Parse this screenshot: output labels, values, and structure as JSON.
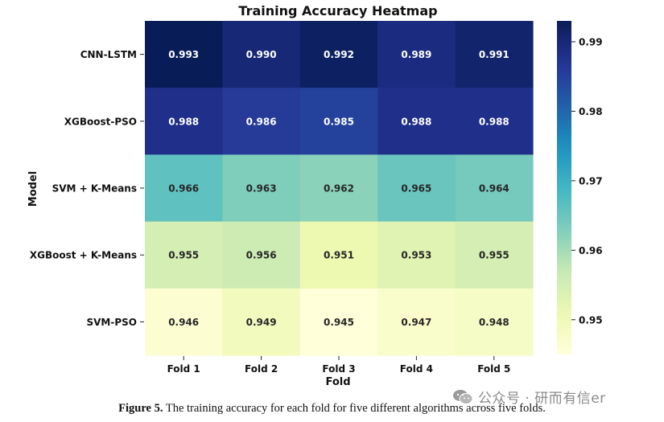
{
  "chart_data": {
    "type": "heatmap",
    "title": "Training Accuracy Heatmap",
    "xlabel": "Fold",
    "ylabel": "Model",
    "columns": [
      "Fold 1",
      "Fold 2",
      "Fold 3",
      "Fold 4",
      "Fold 5"
    ],
    "rows": [
      "CNN-LSTM",
      "XGBoost-PSO",
      "SVM + K-Means",
      "XGBoost + K-Means",
      "SVM-PSO"
    ],
    "values": [
      [
        0.993,
        0.99,
        0.992,
        0.989,
        0.991
      ],
      [
        0.988,
        0.986,
        0.985,
        0.988,
        0.988
      ],
      [
        0.966,
        0.963,
        0.962,
        0.965,
        0.964
      ],
      [
        0.955,
        0.956,
        0.951,
        0.953,
        0.955
      ],
      [
        0.946,
        0.949,
        0.945,
        0.947,
        0.948
      ]
    ],
    "colormap": "YlGnBu",
    "colorbar": {
      "range": [
        0.945,
        0.993
      ],
      "ticks": [
        0.95,
        0.96,
        0.97,
        0.98,
        0.99
      ],
      "tick_labels": [
        "0.95",
        "0.96",
        "0.97",
        "0.98",
        "0.99"
      ]
    },
    "annotations": true
  },
  "caption": {
    "label": "Figure 5.",
    "text": " The training accuracy for each fold for five different algorithms across five folds."
  },
  "watermark": {
    "text": "公众号 · 研而有信er"
  }
}
